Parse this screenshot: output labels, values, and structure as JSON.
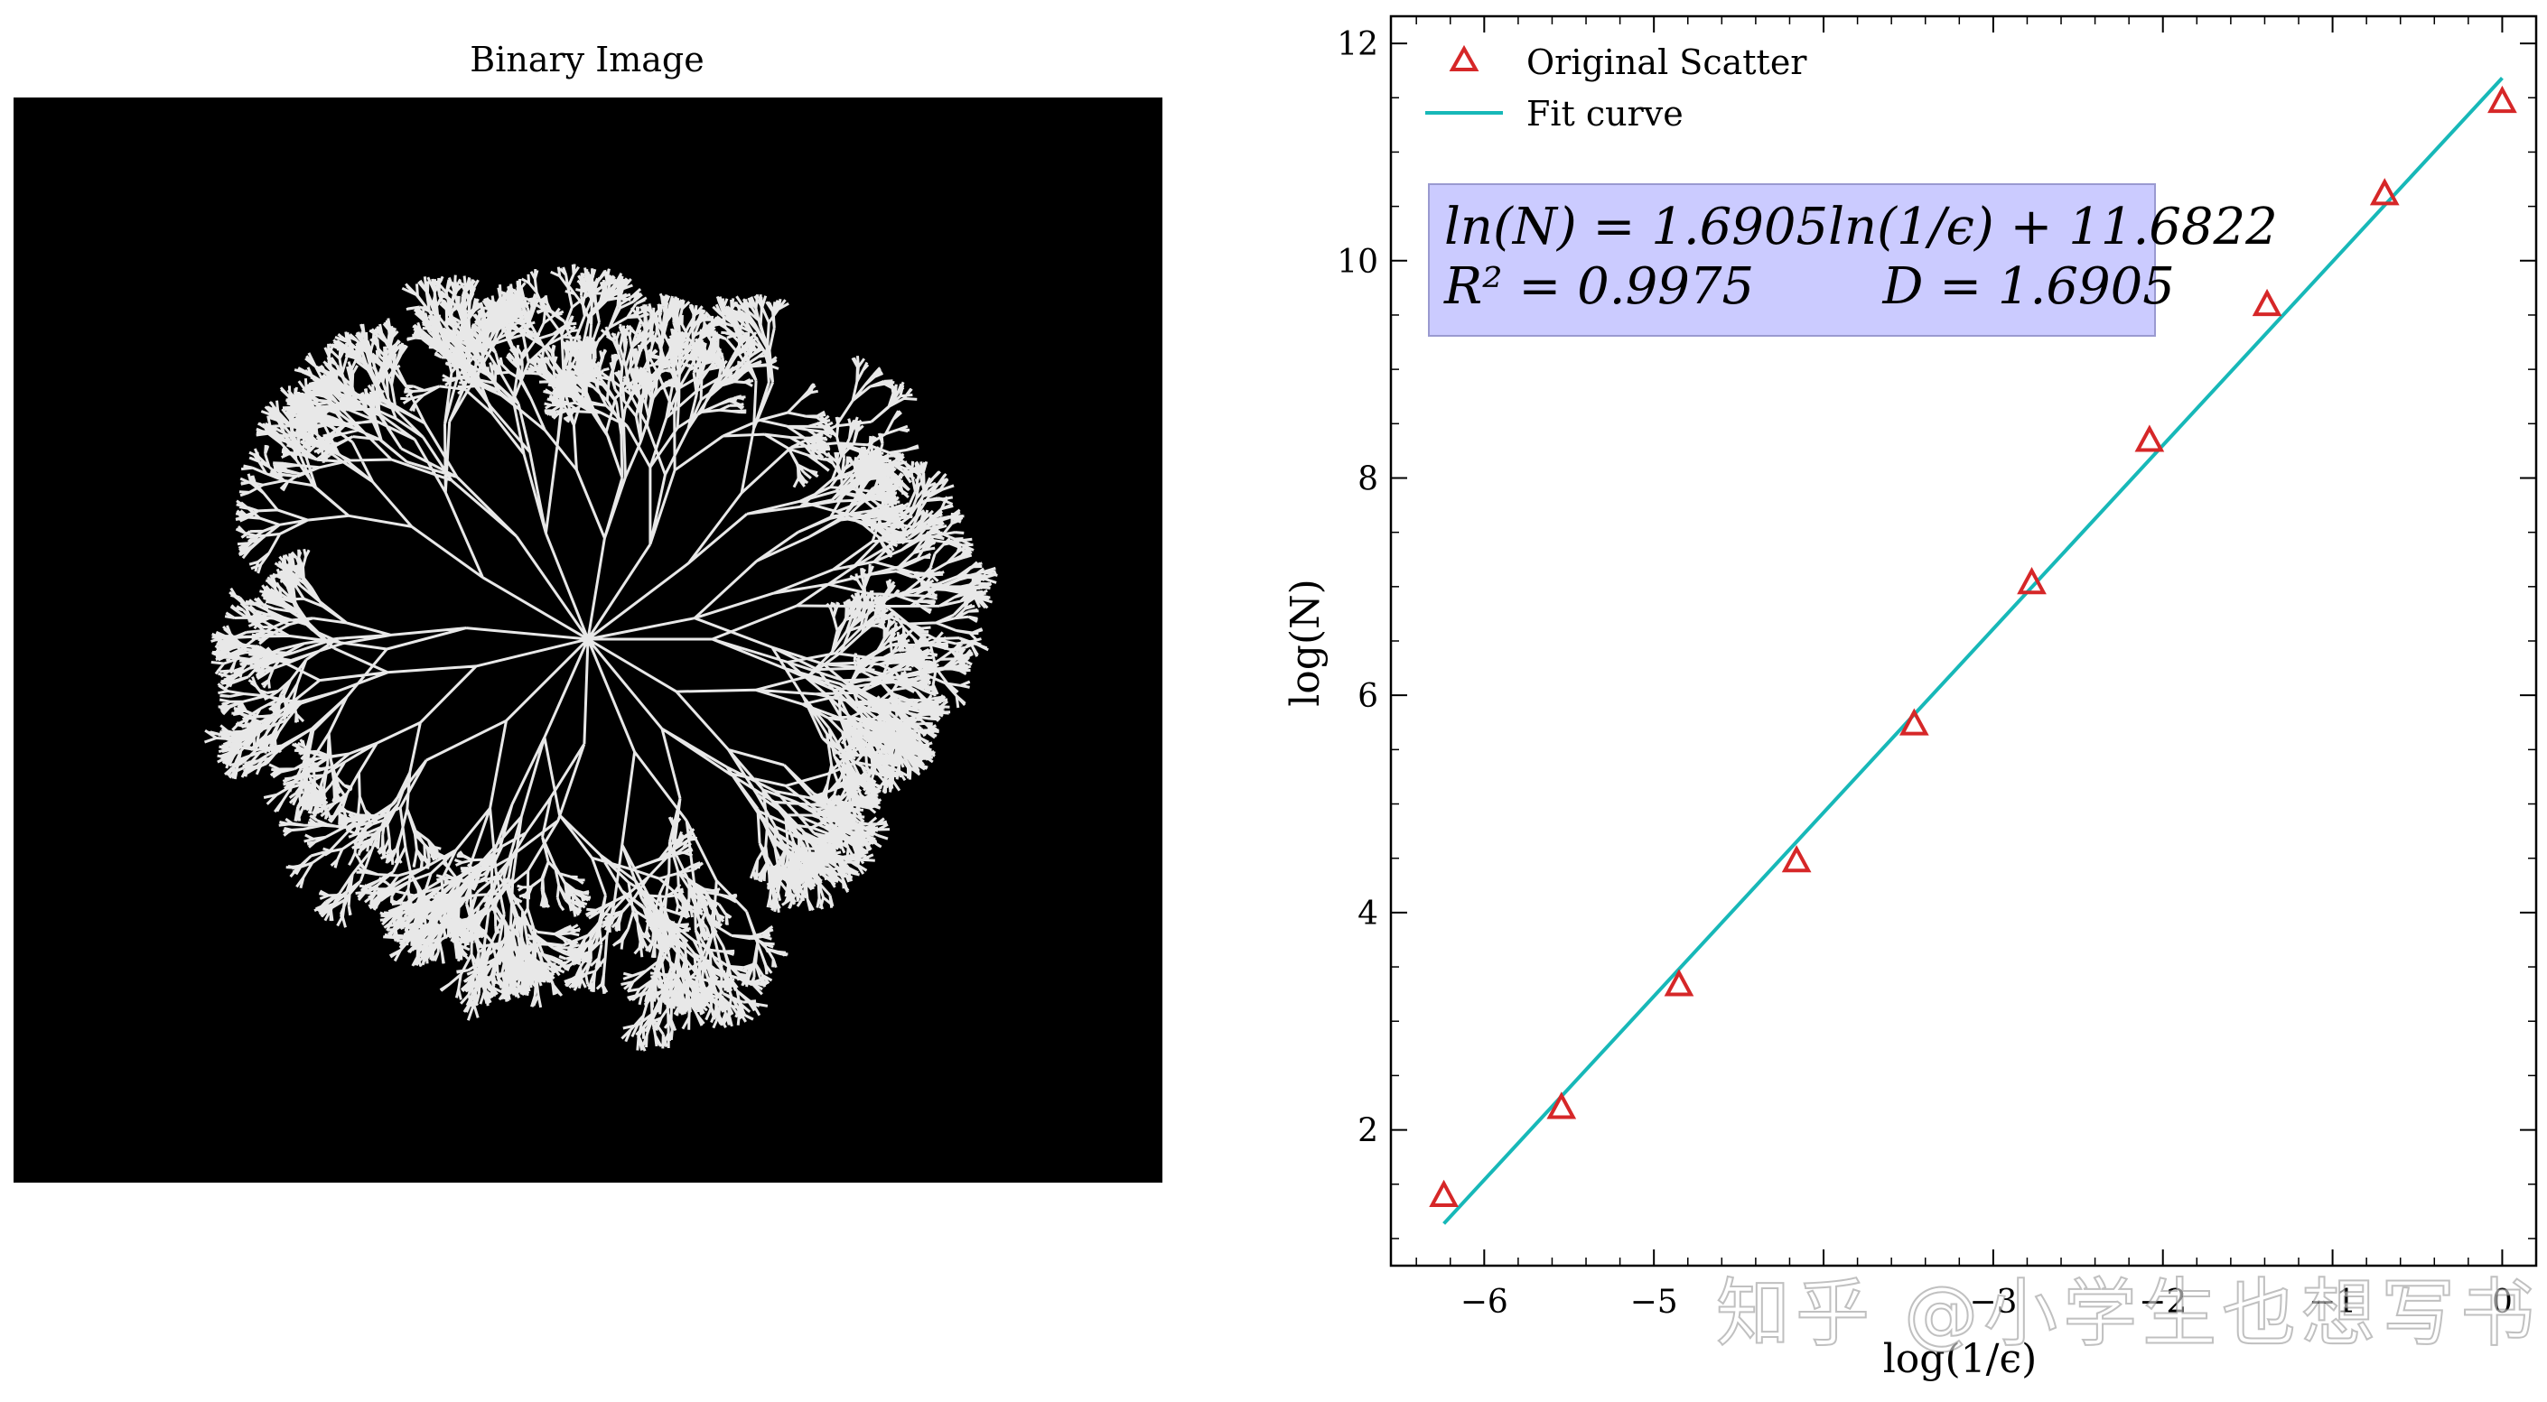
{
  "left_panel": {
    "title": "Binary Image"
  },
  "chart_data": {
    "type": "scatter",
    "title": "",
    "xlabel": "log(1/ϵ)",
    "ylabel": "log(N)",
    "xlim": [
      -6.55,
      0.2
    ],
    "ylim": [
      0.75,
      12.25
    ],
    "x_ticks": [
      -6,
      -5,
      -4,
      -3,
      -2,
      -1,
      0
    ],
    "x_tick_labels": [
      "−6",
      "−5",
      "",
      "−3",
      "−2",
      "−1",
      "0"
    ],
    "y_ticks": [
      2,
      4,
      6,
      8,
      10,
      12
    ],
    "y_tick_labels": [
      "2",
      "4",
      "6",
      "8",
      "10",
      "12"
    ],
    "grid": false,
    "legend_position": "top-left",
    "series": [
      {
        "name": "Original Scatter",
        "kind": "scatter",
        "marker": "triangle-open",
        "color": "#d62728",
        "x": [
          -6.238,
          -5.545,
          -4.852,
          -4.159,
          -3.466,
          -2.773,
          -2.079,
          -1.386,
          -0.693,
          0.0
        ],
        "y": [
          1.39,
          2.2,
          3.33,
          4.47,
          5.73,
          7.03,
          8.34,
          9.59,
          10.61,
          11.46
        ]
      },
      {
        "name": "Fit curve",
        "kind": "line",
        "color": "#17b8b8",
        "x": [
          -6.238,
          0.0
        ],
        "y": [
          1.137,
          11.682
        ]
      }
    ],
    "annotation": {
      "line1": "ln(N) = 1.6905ln(1/ϵ) + 11.6822",
      "line2": "R² = 0.9975        D = 1.6905",
      "background": "#c8c8ff"
    }
  },
  "watermark": "知乎 @小学生也想写书"
}
